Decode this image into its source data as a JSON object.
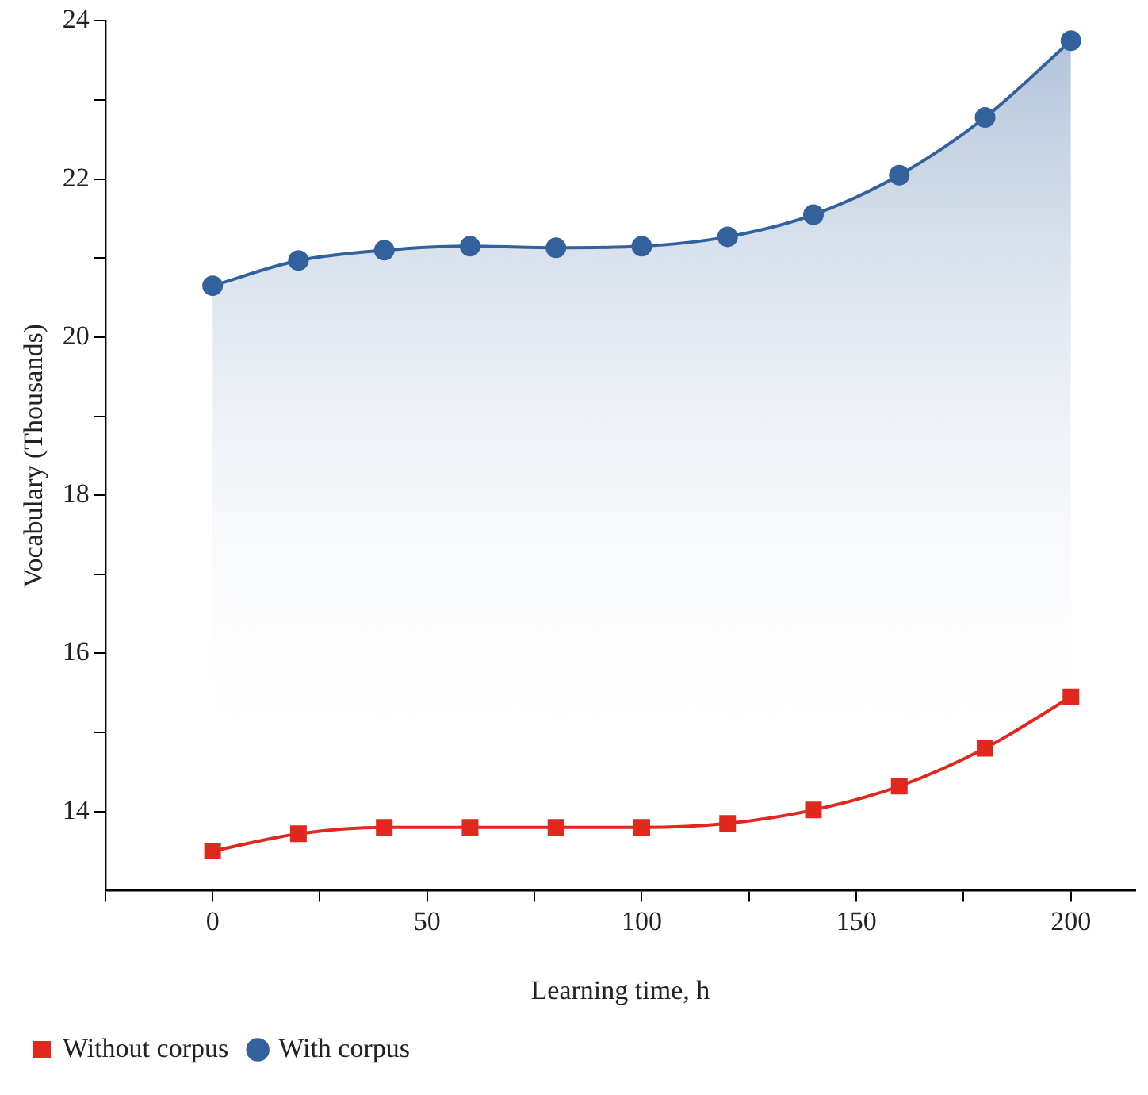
{
  "chart_data": {
    "type": "line",
    "xlabel": "Learning time, h",
    "ylabel": "Vocabulary (Thousands)",
    "x": [
      0,
      20,
      40,
      60,
      80,
      100,
      120,
      140,
      160,
      180,
      200
    ],
    "series": [
      {
        "name": "Without corpus",
        "color": "#e0281e",
        "marker": "square",
        "values": [
          13.5,
          13.72,
          13.8,
          13.8,
          13.8,
          13.8,
          13.85,
          14.02,
          14.32,
          14.8,
          15.45
        ]
      },
      {
        "name": "With corpus",
        "type": "area",
        "color": "#33619c",
        "marker": "circle",
        "values": [
          20.65,
          20.97,
          21.1,
          21.15,
          21.13,
          21.15,
          21.27,
          21.55,
          22.05,
          22.78,
          23.75
        ]
      }
    ],
    "xlim": [
      -25,
      215
    ],
    "xticks": [
      {
        "value": -25,
        "label": null
      },
      0,
      {
        "value": 25,
        "label": null
      },
      50,
      {
        "value": 75,
        "label": null
      },
      100,
      {
        "value": 125,
        "label": null
      },
      150,
      {
        "value": 175,
        "label": null
      },
      200
    ],
    "ylim": [
      13,
      24
    ],
    "yticks": [
      14,
      {
        "value": 15,
        "label": null
      },
      16,
      {
        "value": 17,
        "label": null
      },
      18,
      {
        "value": 19,
        "label": null
      },
      20,
      {
        "value": 21,
        "label": null
      },
      22,
      {
        "value": 23,
        "label": null
      },
      24
    ],
    "grid": false,
    "legend": "bottom left",
    "line_style": "solid"
  }
}
